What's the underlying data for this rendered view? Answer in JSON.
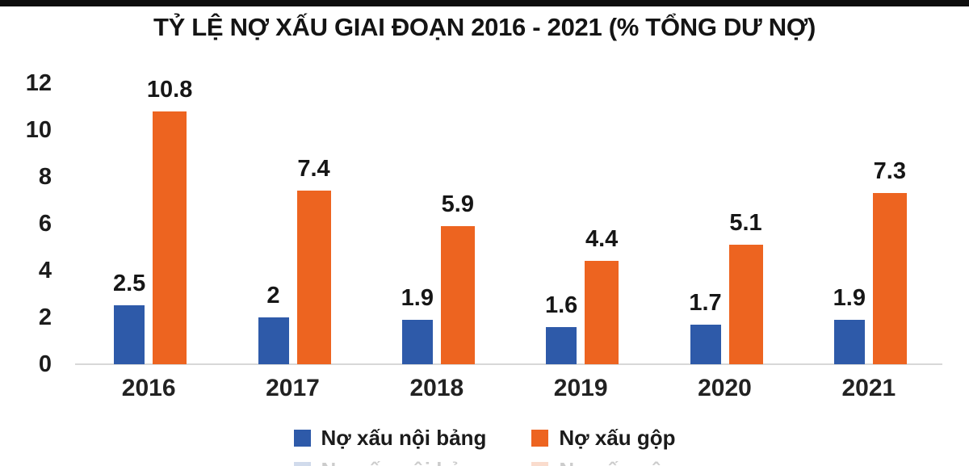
{
  "chart_data": {
    "type": "bar",
    "title": "TỶ LỆ NỢ XẤU GIAI ĐOẠN 2016 - 2021 (% TỔNG DƯ NỢ)",
    "categories": [
      "2016",
      "2017",
      "2018",
      "2019",
      "2020",
      "2021"
    ],
    "series": [
      {
        "name": "Nợ xấu nội bảng",
        "color": "#2e5aa9",
        "values": [
          2.5,
          2,
          1.9,
          1.6,
          1.7,
          1.9
        ]
      },
      {
        "name": "Nợ xấu gộp",
        "color": "#ed6420",
        "values": [
          10.8,
          7.4,
          5.9,
          4.4,
          5.1,
          7.3
        ]
      }
    ],
    "value_labels": [
      "2.5",
      "2",
      "1.9",
      "1.6",
      "1.7",
      "1.9",
      "10.8",
      "7.4",
      "5.9",
      "4.4",
      "5.1",
      "7.3"
    ],
    "y_ticks": [
      0,
      2,
      4,
      6,
      8,
      10,
      12
    ],
    "ylim": [
      0,
      12
    ],
    "xlabel": "",
    "ylabel": "",
    "grid": false,
    "legend_position": "bottom",
    "axis_line_color": "#d8d8d8",
    "top_bar_color": "#0e0e0e"
  }
}
